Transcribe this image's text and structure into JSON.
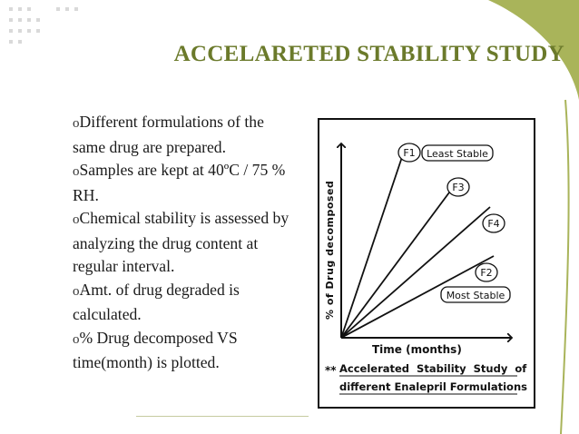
{
  "slide": {
    "title": "ACCELARETED STABILITY STUDY",
    "accent_color": "#6b7a2b",
    "decor_color": "#a9b45a",
    "bullet_marker": "o",
    "bullets": [
      "Different formulations of the same drug are prepared.",
      "Samples are kept at 40ºC / 75 % RH.",
      "Chemical stability is assessed by analyzing the drug content at regular interval.",
      "Amt. of drug degraded is calculated.",
      "% Drug decomposed VS time(month) is plotted."
    ]
  },
  "chart_data": {
    "type": "line",
    "ylabel": "% of Drug decomposed",
    "xlabel": "Time (months)",
    "series": [
      {
        "name": "F1",
        "note": "Least Stable",
        "slope_rank": 1
      },
      {
        "name": "F3",
        "note": "",
        "slope_rank": 2
      },
      {
        "name": "F4",
        "note": "",
        "slope_rank": 3
      },
      {
        "name": "F2",
        "note": "Most Stable",
        "slope_rank": 4
      }
    ],
    "caption_prefix": "**",
    "caption_line1": "Accelerated  Stability  Study  of",
    "caption_line2": "different Enalepril Formulations"
  }
}
